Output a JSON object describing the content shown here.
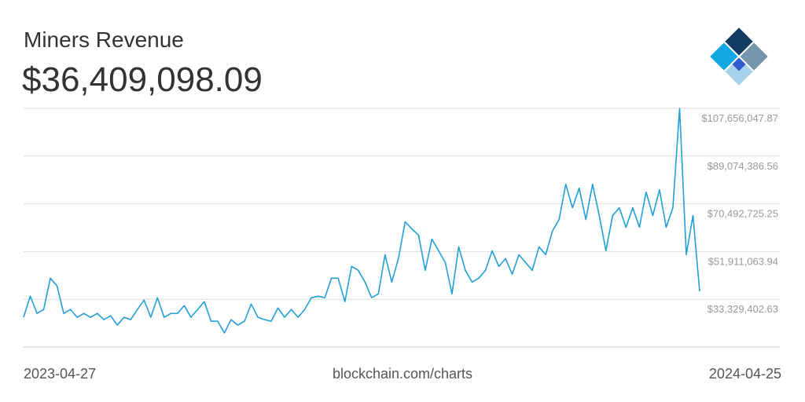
{
  "chart_data": {
    "type": "line",
    "title": "Miners Revenue",
    "subtitle": "$36,409,098.09",
    "source": "blockchain.com/charts",
    "categories": [
      "2023-04-27",
      null,
      null,
      null,
      null,
      null,
      null,
      null,
      null,
      null,
      null,
      null,
      null,
      null,
      null,
      null,
      null,
      null,
      null,
      null,
      null,
      null,
      null,
      null,
      null,
      null,
      null,
      null,
      null,
      null,
      null,
      null,
      null,
      null,
      null,
      null,
      null,
      null,
      null,
      null,
      null,
      null,
      null,
      null,
      null,
      null,
      null,
      null,
      null,
      null,
      null,
      null,
      null,
      null,
      null,
      null,
      null,
      null,
      null,
      null,
      null,
      null,
      null,
      null,
      null,
      null,
      null,
      null,
      null,
      null,
      null,
      null,
      null,
      null,
      null,
      null,
      null,
      null,
      null,
      null,
      null,
      null,
      null,
      null,
      null,
      null,
      null,
      null,
      null,
      null,
      null,
      null,
      null,
      null,
      null,
      null,
      null,
      null,
      null,
      null,
      null,
      "2024-04-25"
    ],
    "series": [
      {
        "color": "#229fd7",
        "values": [
          26320000,
          34550000,
          27850000,
          29370000,
          41550000,
          38510000,
          27850000,
          29370000,
          26320000,
          27850000,
          26320000,
          27850000,
          25410000,
          26930000,
          23280000,
          26320000,
          25410000,
          29370000,
          33030000,
          26320000,
          33940000,
          26320000,
          27850000,
          27850000,
          30890000,
          26320000,
          29370000,
          32420000,
          24800000,
          24800000,
          20230000,
          25410000,
          23280000,
          24800000,
          31500000,
          26320000,
          25410000,
          24800000,
          29980000,
          26320000,
          29370000,
          26320000,
          29370000,
          33940000,
          34550000,
          33940000,
          41550000,
          41550000,
          32420000,
          46120000,
          44600000,
          40030000,
          33940000,
          35460000,
          50690000,
          40030000,
          49170000,
          63490000,
          60750000,
          58310000,
          44600000,
          56780000,
          52220000,
          47640000,
          35460000,
          53740000,
          44600000,
          40030000,
          41550000,
          44600000,
          52220000,
          46120000,
          49170000,
          43080000,
          50690000,
          47640000,
          44600000,
          53740000,
          50690000,
          59830000,
          64400000,
          78110000,
          68970000,
          76580000,
          64400000,
          78110000,
          65920000,
          52220000,
          65920000,
          68970000,
          61350000,
          68970000,
          61350000,
          75060000,
          65920000,
          75970000,
          61350000,
          68970000,
          107600000,
          50690000,
          65920000,
          36409098.09
        ]
      }
    ],
    "ylim": [
      14747741.32,
      107656047.87
    ],
    "yticks": [
      {
        "value": 33329402.63,
        "label": "$33,329,402.63"
      },
      {
        "value": 51911063.94,
        "label": "$51,911,063.94"
      },
      {
        "value": 70492725.25,
        "label": "$70,492,725.25"
      },
      {
        "value": 89074386.56,
        "label": "$89,074,386.56"
      },
      {
        "value": 107656047.87,
        "label": "$107,656,047.87"
      }
    ],
    "grid": true
  }
}
